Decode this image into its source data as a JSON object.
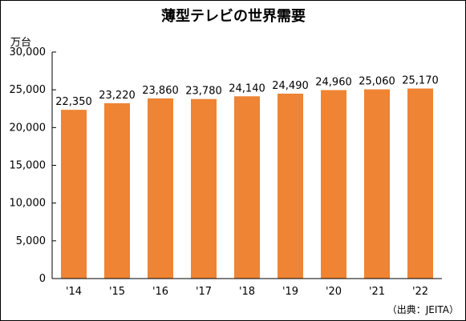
{
  "chart_data": {
    "type": "bar",
    "title": "薄型テレビの世界需要",
    "unit_label": "万台",
    "categories": [
      "'14",
      "'15",
      "'16",
      "'17",
      "'18",
      "'19",
      "'20",
      "'21",
      "'22"
    ],
    "values": [
      22350,
      23220,
      23860,
      23780,
      24140,
      24490,
      24960,
      25060,
      25170
    ],
    "value_labels": [
      "22,350",
      "23,220",
      "23,860",
      "23,780",
      "24,140",
      "24,490",
      "24,960",
      "25,060",
      "25,170"
    ],
    "ylim": [
      0,
      30000
    ],
    "yticks": [
      0,
      5000,
      10000,
      15000,
      20000,
      25000,
      30000
    ],
    "ytick_labels": [
      "0",
      "5,000",
      "10,000",
      "15,000",
      "20,000",
      "25,000",
      "30,000"
    ],
    "bar_color": "#ee8434",
    "grid": false,
    "source": "（出典：JEITA）"
  }
}
